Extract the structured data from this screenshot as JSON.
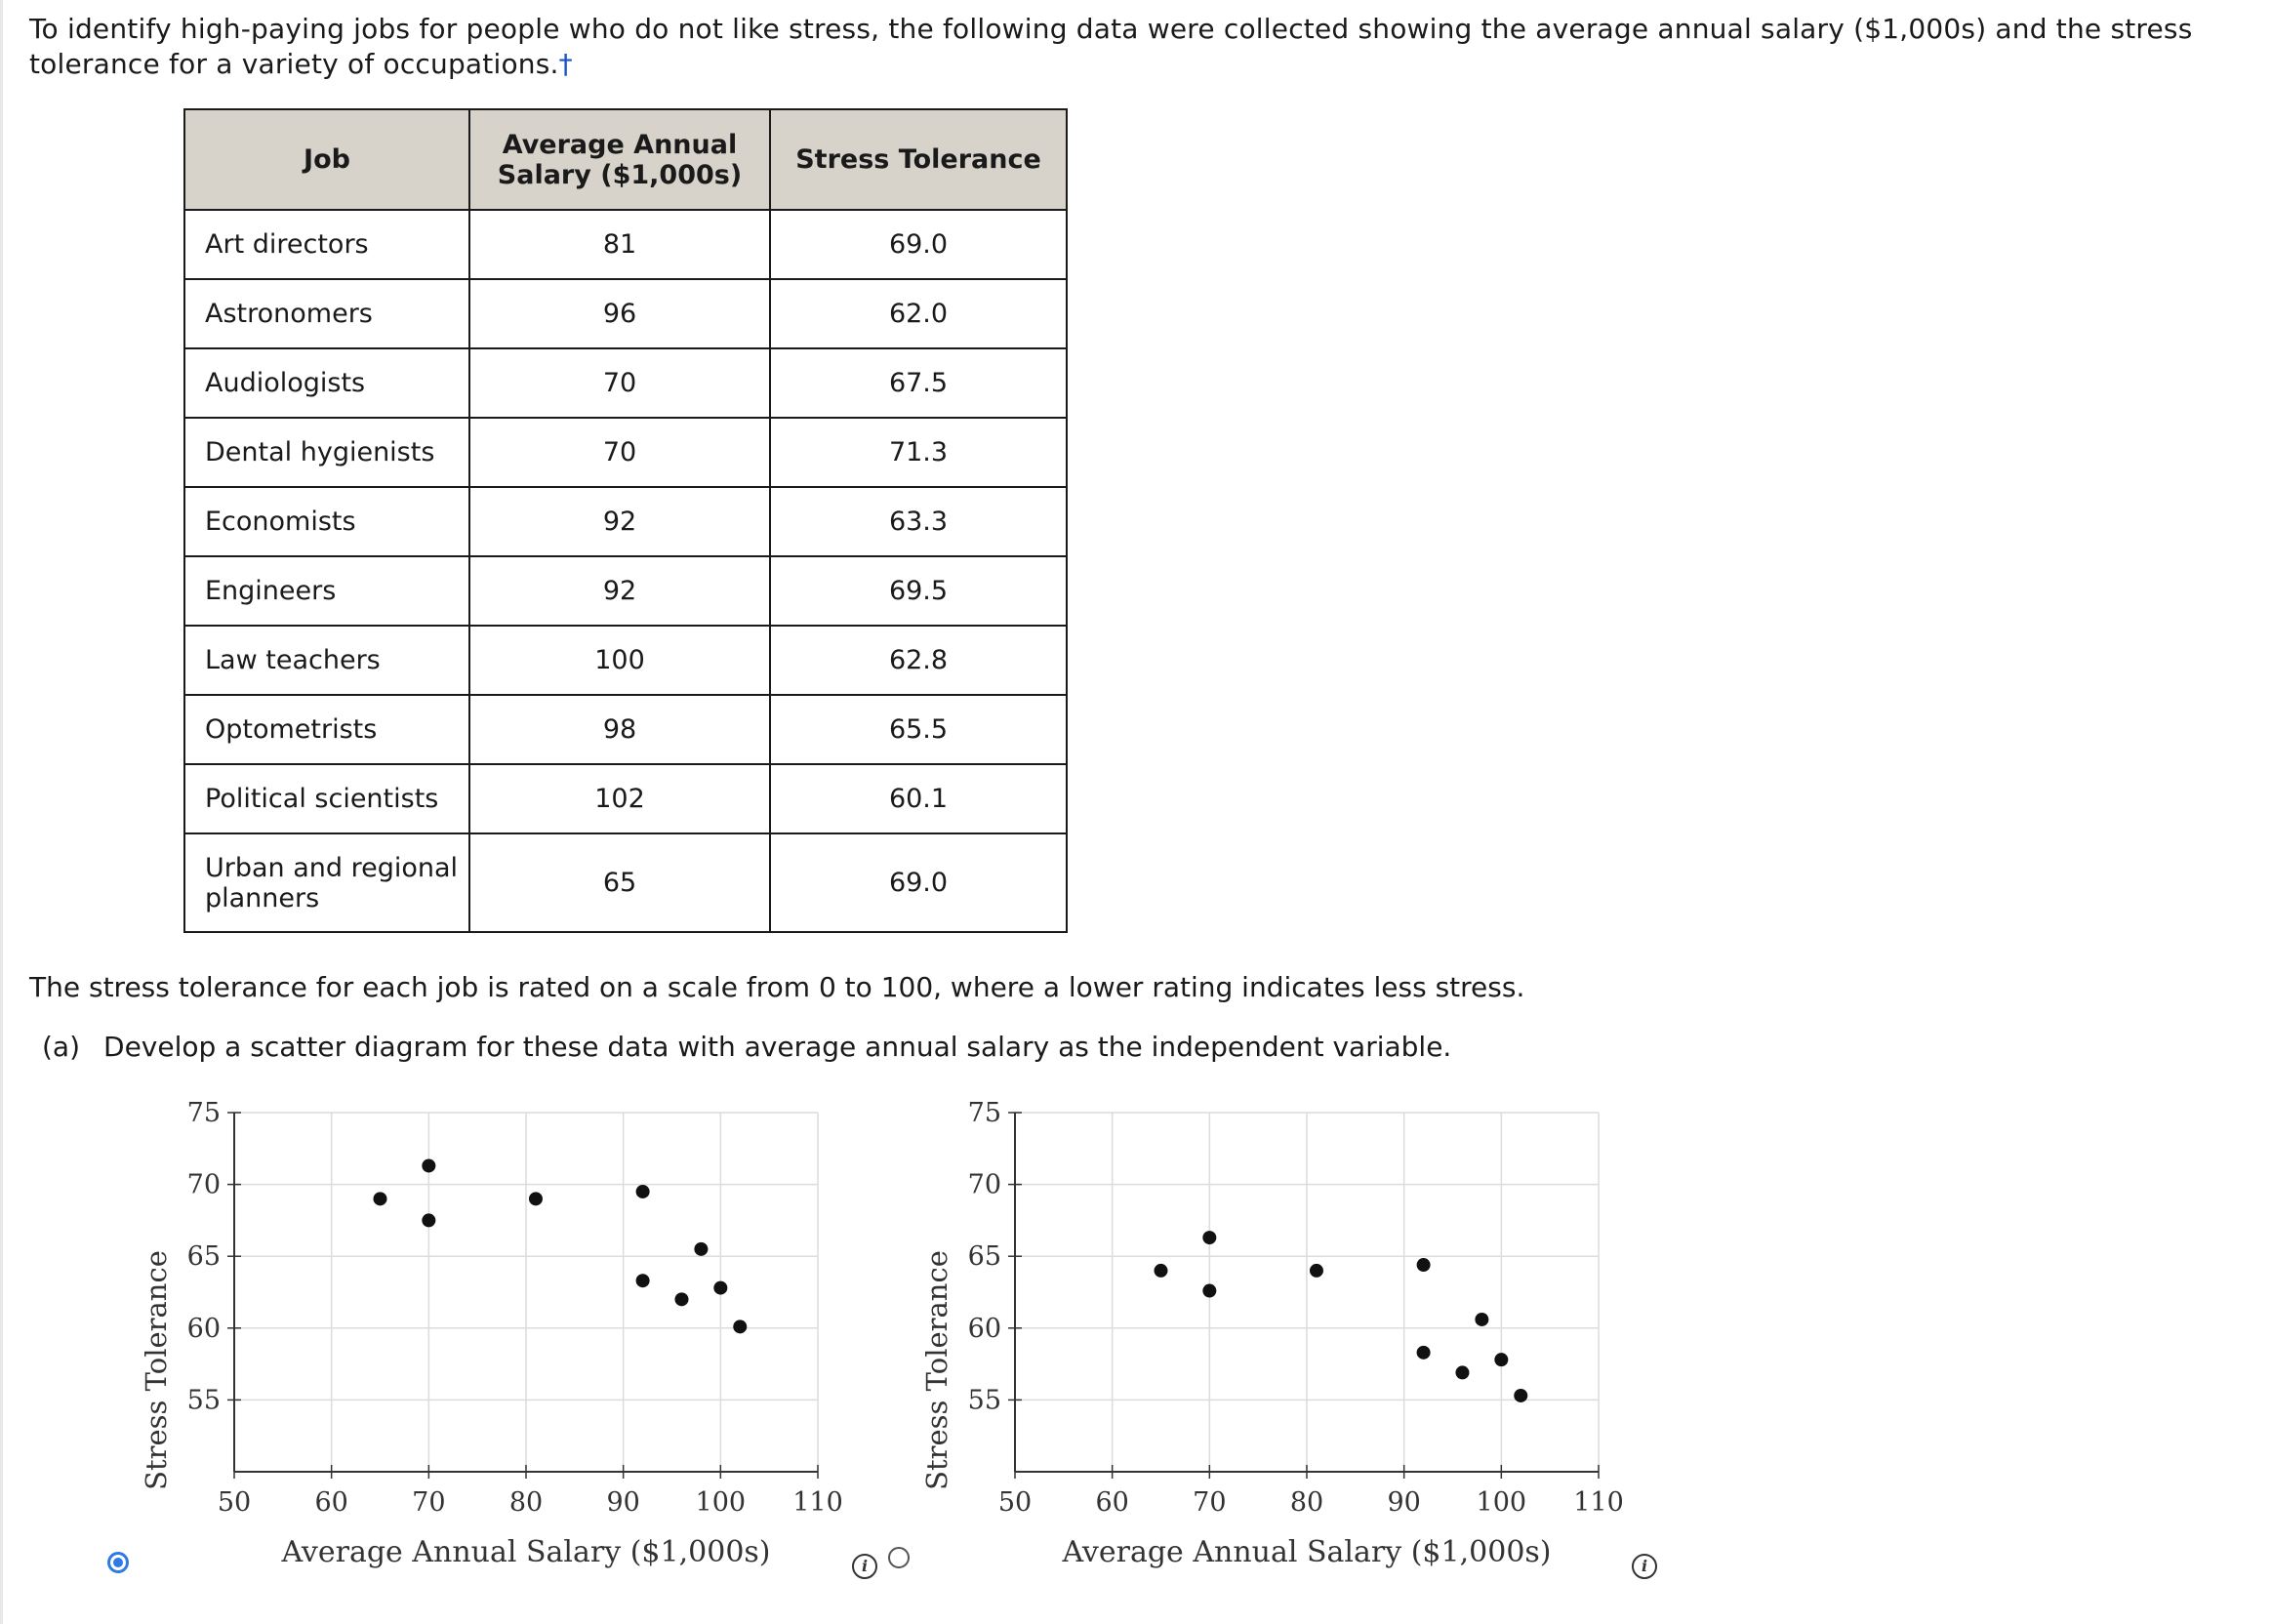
{
  "intro": {
    "text": "To identify high-paying jobs for people who do not like stress, the following data were collected showing the average annual salary ($1,000s) and the stress tolerance for a variety of occupations.",
    "footnote_mark": "†"
  },
  "table": {
    "headers": [
      "Job",
      "Average Annual Salary ($1,000s)",
      "Stress Tolerance"
    ],
    "rows": [
      {
        "job": "Art directors",
        "salary": "81",
        "stress": "69.0"
      },
      {
        "job": "Astronomers",
        "salary": "96",
        "stress": "62.0"
      },
      {
        "job": "Audiologists",
        "salary": "70",
        "stress": "67.5"
      },
      {
        "job": "Dental hygienists",
        "salary": "70",
        "stress": "71.3"
      },
      {
        "job": "Economists",
        "salary": "92",
        "stress": "63.3"
      },
      {
        "job": "Engineers",
        "salary": "92",
        "stress": "69.5"
      },
      {
        "job": "Law teachers",
        "salary": "100",
        "stress": "62.8"
      },
      {
        "job": "Optometrists",
        "salary": "98",
        "stress": "65.5"
      },
      {
        "job": "Political scientists",
        "salary": "102",
        "stress": "60.1"
      },
      {
        "job": "Urban and regional planners",
        "salary": "65",
        "stress": "69.0"
      }
    ]
  },
  "note": "The stress tolerance for each job is rated on a scale from 0 to 100, where a lower rating indicates less stress.",
  "question": {
    "label": "(a)",
    "text": "Develop a scatter diagram for these data with average annual salary as the independent variable."
  },
  "options": [
    {
      "selected": true
    },
    {
      "selected": false
    }
  ],
  "info_icon_glyph": "i",
  "chart_data": [
    {
      "type": "scatter",
      "title": "",
      "xlabel": "Average Annual Salary ($1,000s)",
      "ylabel": "Stress Tolerance",
      "xlim": [
        50,
        110
      ],
      "ylim": [
        50,
        75
      ],
      "xticks": [
        50,
        60,
        70,
        80,
        90,
        100,
        110
      ],
      "yticks": [
        55,
        60,
        65,
        70,
        75
      ],
      "grid": true,
      "points": [
        {
          "x": 81,
          "y": 69.0
        },
        {
          "x": 96,
          "y": 62.0
        },
        {
          "x": 70,
          "y": 67.5
        },
        {
          "x": 70,
          "y": 71.3
        },
        {
          "x": 92,
          "y": 63.3
        },
        {
          "x": 92,
          "y": 69.5
        },
        {
          "x": 100,
          "y": 62.8
        },
        {
          "x": 98,
          "y": 65.5
        },
        {
          "x": 102,
          "y": 60.1
        },
        {
          "x": 65,
          "y": 69.0
        }
      ]
    },
    {
      "type": "scatter",
      "title": "",
      "xlabel": "Average Annual Salary ($1,000s)",
      "ylabel": "Stress Tolerance",
      "xlim": [
        50,
        110
      ],
      "ylim": [
        50,
        75
      ],
      "xticks": [
        50,
        60,
        70,
        80,
        90,
        100,
        110
      ],
      "yticks": [
        55,
        60,
        65,
        70,
        75
      ],
      "grid": true,
      "points": [
        {
          "x": 65,
          "y": 64.0
        },
        {
          "x": 70,
          "y": 66.3
        },
        {
          "x": 70,
          "y": 62.6
        },
        {
          "x": 81,
          "y": 64.0
        },
        {
          "x": 92,
          "y": 64.4
        },
        {
          "x": 92,
          "y": 58.3
        },
        {
          "x": 96,
          "y": 56.9
        },
        {
          "x": 98,
          "y": 60.6
        },
        {
          "x": 100,
          "y": 57.8
        },
        {
          "x": 102,
          "y": 55.3
        }
      ]
    }
  ]
}
